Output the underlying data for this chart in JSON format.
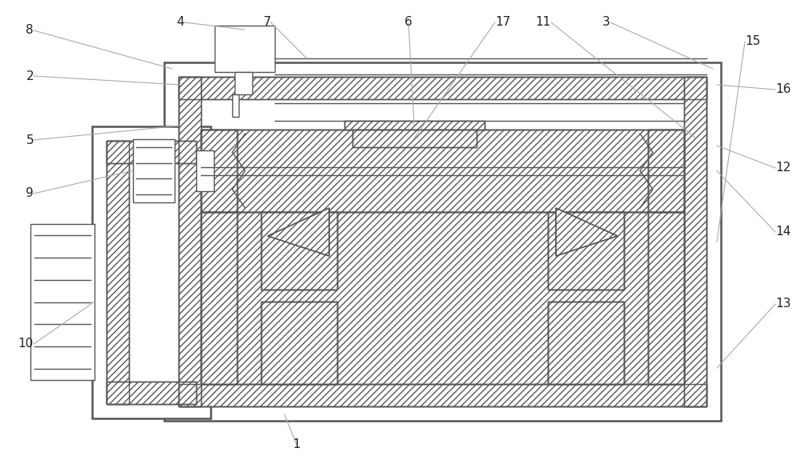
{
  "bg_color": "#ffffff",
  "lc": "#555555",
  "lc_ref": "#aaaaaa",
  "lw": 1.0,
  "lw_thick": 1.8,
  "lw_ref": 0.8,
  "hatch": "////",
  "label_fs": 11,
  "label_color": "#222222"
}
